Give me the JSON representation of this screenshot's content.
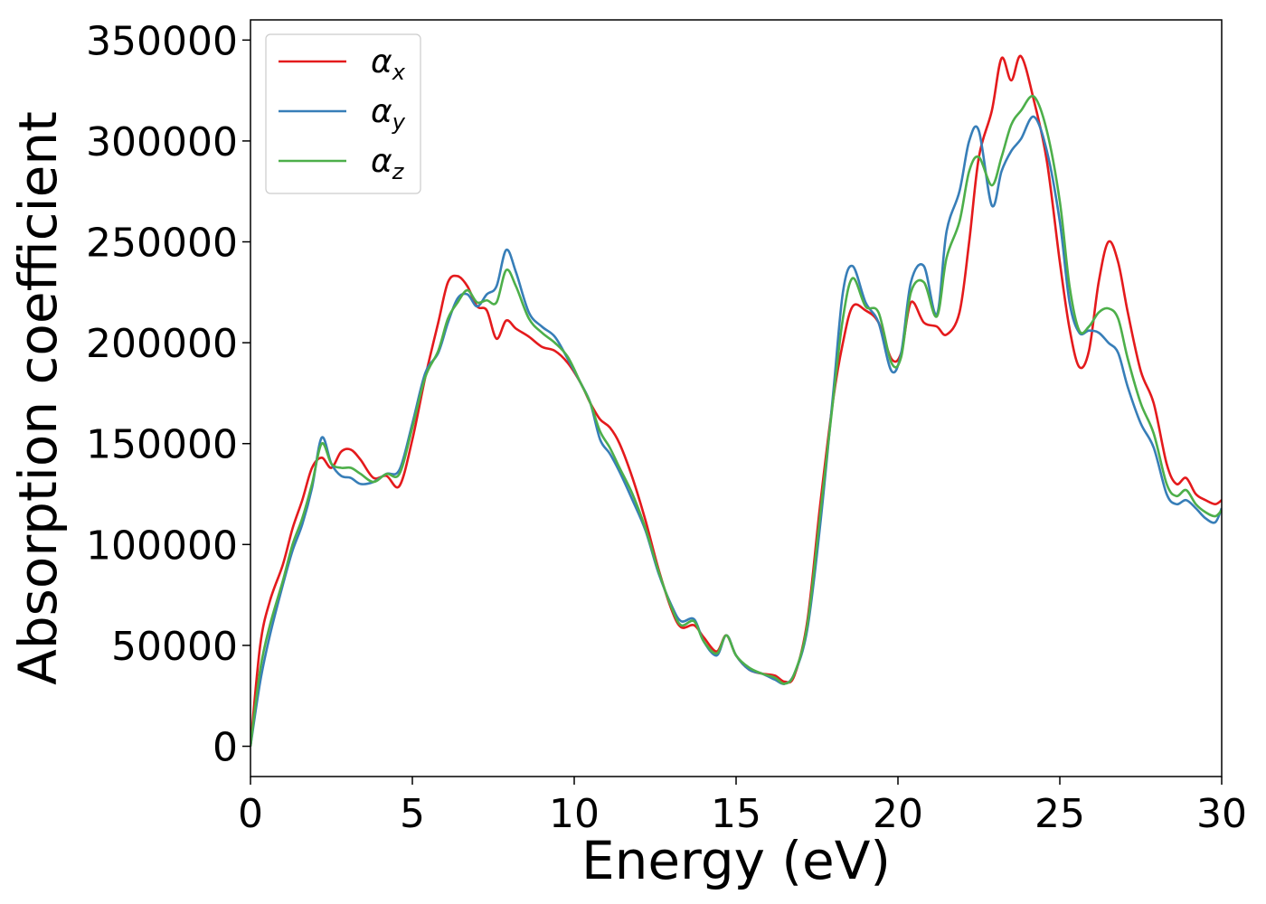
{
  "chart_data": {
    "type": "line",
    "xlabel": "Energy (eV)",
    "ylabel": "Absorption coefficient",
    "xlim": [
      0,
      30
    ],
    "ylim": [
      -15000,
      360000
    ],
    "xticks": [
      0,
      5,
      10,
      15,
      20,
      25,
      30
    ],
    "yticks": [
      0,
      50000,
      100000,
      150000,
      200000,
      250000,
      300000,
      350000
    ],
    "grid": false,
    "legend_position": "top-left",
    "series": [
      {
        "name": "α",
        "subscript": "x",
        "color": "#e41a1c",
        "points": [
          [
            0,
            0
          ],
          [
            0.3,
            50000
          ],
          [
            0.6,
            72000
          ],
          [
            1.0,
            90000
          ],
          [
            1.3,
            108000
          ],
          [
            1.6,
            122000
          ],
          [
            1.9,
            138000
          ],
          [
            2.2,
            143000
          ],
          [
            2.5,
            138000
          ],
          [
            2.8,
            146000
          ],
          [
            3.1,
            147000
          ],
          [
            3.4,
            142000
          ],
          [
            3.8,
            133000
          ],
          [
            4.2,
            134000
          ],
          [
            4.6,
            129000
          ],
          [
            5.0,
            152000
          ],
          [
            5.4,
            183000
          ],
          [
            5.8,
            210000
          ],
          [
            6.1,
            230000
          ],
          [
            6.4,
            233000
          ],
          [
            6.7,
            228000
          ],
          [
            7.0,
            218000
          ],
          [
            7.3,
            216000
          ],
          [
            7.6,
            202000
          ],
          [
            7.9,
            211000
          ],
          [
            8.2,
            207000
          ],
          [
            8.6,
            203000
          ],
          [
            9.0,
            198000
          ],
          [
            9.4,
            196000
          ],
          [
            9.8,
            190000
          ],
          [
            10.2,
            180000
          ],
          [
            10.5,
            170000
          ],
          [
            10.8,
            162000
          ],
          [
            11.1,
            158000
          ],
          [
            11.4,
            150000
          ],
          [
            11.8,
            133000
          ],
          [
            12.2,
            112000
          ],
          [
            12.6,
            88000
          ],
          [
            13.0,
            68000
          ],
          [
            13.3,
            59000
          ],
          [
            13.7,
            60000
          ],
          [
            14.0,
            54000
          ],
          [
            14.4,
            47000
          ],
          [
            14.7,
            55000
          ],
          [
            15.0,
            45000
          ],
          [
            15.4,
            38000
          ],
          [
            15.8,
            36000
          ],
          [
            16.2,
            35000
          ],
          [
            16.5,
            32000
          ],
          [
            16.8,
            35000
          ],
          [
            17.2,
            62000
          ],
          [
            17.6,
            120000
          ],
          [
            18.0,
            172000
          ],
          [
            18.3,
            200000
          ],
          [
            18.6,
            218000
          ],
          [
            19.0,
            216000
          ],
          [
            19.4,
            210000
          ],
          [
            19.8,
            192000
          ],
          [
            20.1,
            195000
          ],
          [
            20.4,
            220000
          ],
          [
            20.8,
            210000
          ],
          [
            21.2,
            208000
          ],
          [
            21.5,
            204000
          ],
          [
            21.9,
            215000
          ],
          [
            22.2,
            250000
          ],
          [
            22.5,
            292000
          ],
          [
            22.9,
            315000
          ],
          [
            23.2,
            341000
          ],
          [
            23.5,
            330000
          ],
          [
            23.8,
            342000
          ],
          [
            24.2,
            320000
          ],
          [
            24.6,
            290000
          ],
          [
            25.0,
            240000
          ],
          [
            25.3,
            207000
          ],
          [
            25.6,
            188000
          ],
          [
            25.9,
            196000
          ],
          [
            26.2,
            230000
          ],
          [
            26.5,
            250000
          ],
          [
            26.8,
            240000
          ],
          [
            27.1,
            215000
          ],
          [
            27.5,
            186000
          ],
          [
            27.9,
            170000
          ],
          [
            28.3,
            140000
          ],
          [
            28.6,
            130000
          ],
          [
            28.9,
            133000
          ],
          [
            29.2,
            125000
          ],
          [
            29.5,
            122000
          ],
          [
            29.8,
            120000
          ],
          [
            30.0,
            122000
          ]
        ]
      },
      {
        "name": "α",
        "subscript": "y",
        "color": "#377eb8",
        "points": [
          [
            0,
            0
          ],
          [
            0.3,
            32000
          ],
          [
            0.6,
            55000
          ],
          [
            1.0,
            80000
          ],
          [
            1.3,
            97000
          ],
          [
            1.6,
            110000
          ],
          [
            1.9,
            128000
          ],
          [
            2.2,
            153000
          ],
          [
            2.5,
            140000
          ],
          [
            2.8,
            134000
          ],
          [
            3.1,
            133000
          ],
          [
            3.4,
            130000
          ],
          [
            3.8,
            131000
          ],
          [
            4.2,
            135000
          ],
          [
            4.6,
            137000
          ],
          [
            5.0,
            160000
          ],
          [
            5.4,
            185000
          ],
          [
            5.8,
            195000
          ],
          [
            6.1,
            210000
          ],
          [
            6.4,
            222000
          ],
          [
            6.7,
            224000
          ],
          [
            7.0,
            218000
          ],
          [
            7.3,
            224000
          ],
          [
            7.6,
            228000
          ],
          [
            7.9,
            246000
          ],
          [
            8.2,
            235000
          ],
          [
            8.6,
            215000
          ],
          [
            9.0,
            208000
          ],
          [
            9.4,
            203000
          ],
          [
            9.8,
            192000
          ],
          [
            10.2,
            180000
          ],
          [
            10.5,
            170000
          ],
          [
            10.8,
            152000
          ],
          [
            11.1,
            145000
          ],
          [
            11.4,
            136000
          ],
          [
            11.8,
            122000
          ],
          [
            12.2,
            107000
          ],
          [
            12.6,
            86000
          ],
          [
            13.0,
            70000
          ],
          [
            13.3,
            62000
          ],
          [
            13.7,
            63000
          ],
          [
            14.0,
            52000
          ],
          [
            14.4,
            45000
          ],
          [
            14.7,
            55000
          ],
          [
            15.0,
            45000
          ],
          [
            15.4,
            38000
          ],
          [
            15.8,
            36000
          ],
          [
            16.2,
            33000
          ],
          [
            16.5,
            31000
          ],
          [
            16.8,
            36000
          ],
          [
            17.2,
            58000
          ],
          [
            17.6,
            110000
          ],
          [
            18.0,
            175000
          ],
          [
            18.3,
            225000
          ],
          [
            18.6,
            238000
          ],
          [
            19.0,
            220000
          ],
          [
            19.4,
            210000
          ],
          [
            19.8,
            186000
          ],
          [
            20.1,
            195000
          ],
          [
            20.4,
            230000
          ],
          [
            20.8,
            238000
          ],
          [
            21.2,
            214000
          ],
          [
            21.5,
            255000
          ],
          [
            21.9,
            275000
          ],
          [
            22.2,
            300000
          ],
          [
            22.5,
            305000
          ],
          [
            22.9,
            268000
          ],
          [
            23.2,
            285000
          ],
          [
            23.5,
            295000
          ],
          [
            23.8,
            301000
          ],
          [
            24.2,
            312000
          ],
          [
            24.6,
            295000
          ],
          [
            25.0,
            260000
          ],
          [
            25.3,
            220000
          ],
          [
            25.6,
            205000
          ],
          [
            25.9,
            206000
          ],
          [
            26.2,
            205000
          ],
          [
            26.5,
            200000
          ],
          [
            26.8,
            195000
          ],
          [
            27.1,
            178000
          ],
          [
            27.5,
            160000
          ],
          [
            27.9,
            148000
          ],
          [
            28.3,
            125000
          ],
          [
            28.6,
            120000
          ],
          [
            28.9,
            122000
          ],
          [
            29.2,
            118000
          ],
          [
            29.5,
            113000
          ],
          [
            29.8,
            111000
          ],
          [
            30.0,
            118000
          ]
        ]
      },
      {
        "name": "α",
        "subscript": "z",
        "color": "#4daf4a",
        "points": [
          [
            0,
            0
          ],
          [
            0.3,
            38000
          ],
          [
            0.6,
            60000
          ],
          [
            1.0,
            82000
          ],
          [
            1.3,
            100000
          ],
          [
            1.6,
            113000
          ],
          [
            1.9,
            130000
          ],
          [
            2.2,
            150000
          ],
          [
            2.5,
            140000
          ],
          [
            2.8,
            138000
          ],
          [
            3.1,
            138000
          ],
          [
            3.4,
            135000
          ],
          [
            3.8,
            131000
          ],
          [
            4.2,
            135000
          ],
          [
            4.6,
            135000
          ],
          [
            5.0,
            158000
          ],
          [
            5.4,
            183000
          ],
          [
            5.8,
            196000
          ],
          [
            6.1,
            212000
          ],
          [
            6.4,
            220000
          ],
          [
            6.7,
            226000
          ],
          [
            7.0,
            220000
          ],
          [
            7.3,
            221000
          ],
          [
            7.6,
            220000
          ],
          [
            7.9,
            236000
          ],
          [
            8.2,
            228000
          ],
          [
            8.6,
            212000
          ],
          [
            9.0,
            205000
          ],
          [
            9.4,
            200000
          ],
          [
            9.8,
            193000
          ],
          [
            10.2,
            180000
          ],
          [
            10.5,
            170000
          ],
          [
            10.8,
            156000
          ],
          [
            11.1,
            148000
          ],
          [
            11.4,
            138000
          ],
          [
            11.8,
            125000
          ],
          [
            12.2,
            108000
          ],
          [
            12.6,
            87000
          ],
          [
            13.0,
            69000
          ],
          [
            13.3,
            60000
          ],
          [
            13.7,
            62000
          ],
          [
            14.0,
            52000
          ],
          [
            14.4,
            46000
          ],
          [
            14.7,
            55000
          ],
          [
            15.0,
            45000
          ],
          [
            15.4,
            39000
          ],
          [
            15.8,
            36000
          ],
          [
            16.2,
            34000
          ],
          [
            16.5,
            31000
          ],
          [
            16.8,
            36000
          ],
          [
            17.2,
            60000
          ],
          [
            17.6,
            115000
          ],
          [
            18.0,
            172000
          ],
          [
            18.3,
            212000
          ],
          [
            18.6,
            232000
          ],
          [
            19.0,
            218000
          ],
          [
            19.4,
            215000
          ],
          [
            19.8,
            190000
          ],
          [
            20.1,
            193000
          ],
          [
            20.4,
            225000
          ],
          [
            20.8,
            230000
          ],
          [
            21.2,
            213000
          ],
          [
            21.5,
            242000
          ],
          [
            21.9,
            260000
          ],
          [
            22.2,
            285000
          ],
          [
            22.5,
            292000
          ],
          [
            22.9,
            278000
          ],
          [
            23.2,
            292000
          ],
          [
            23.5,
            308000
          ],
          [
            23.8,
            315000
          ],
          [
            24.2,
            322000
          ],
          [
            24.6,
            305000
          ],
          [
            25.0,
            270000
          ],
          [
            25.3,
            228000
          ],
          [
            25.6,
            206000
          ],
          [
            25.9,
            208000
          ],
          [
            26.2,
            215000
          ],
          [
            26.5,
            217000
          ],
          [
            26.8,
            212000
          ],
          [
            27.1,
            192000
          ],
          [
            27.5,
            170000
          ],
          [
            27.9,
            155000
          ],
          [
            28.3,
            130000
          ],
          [
            28.6,
            124000
          ],
          [
            28.9,
            127000
          ],
          [
            29.2,
            120000
          ],
          [
            29.5,
            116000
          ],
          [
            29.8,
            114000
          ],
          [
            30.0,
            117000
          ]
        ]
      }
    ]
  }
}
